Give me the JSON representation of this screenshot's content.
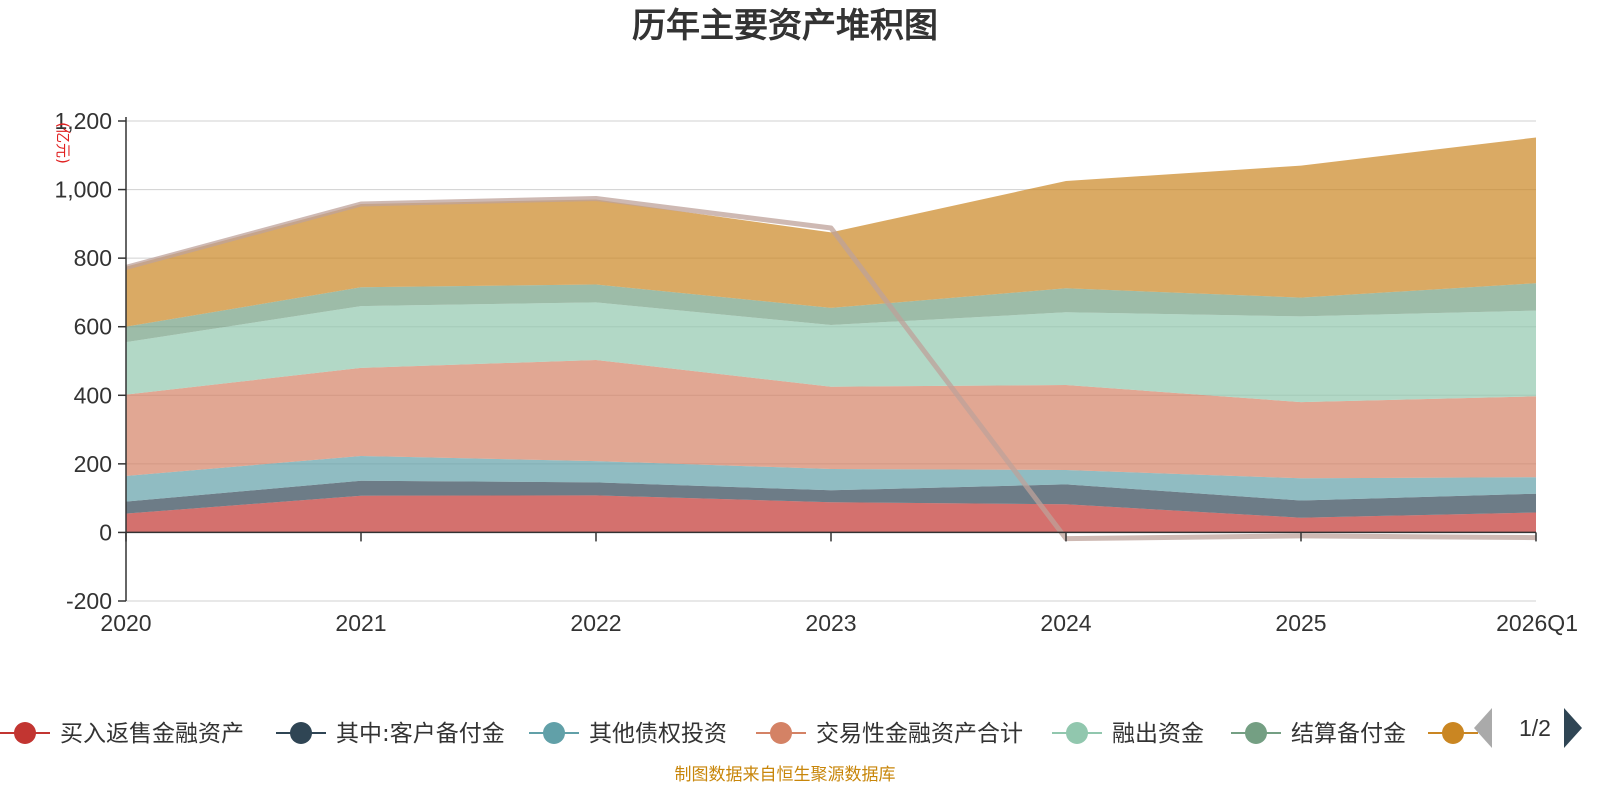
{
  "chart_data": {
    "type": "area",
    "stacked": true,
    "title": "历年主要资产堆积图",
    "unit_label": "(亿元)",
    "categories": [
      "2020",
      "2021",
      "2022",
      "2023",
      "2024",
      "2025",
      "2026Q1"
    ],
    "ylim": [
      -200,
      1200
    ],
    "yticks": [
      -200,
      0,
      200,
      400,
      600,
      800,
      1000,
      1200
    ],
    "ytick_labels": [
      "-200",
      "0",
      "200",
      "400",
      "600",
      "800",
      "1,000",
      "1,200"
    ],
    "grid": true,
    "series": [
      {
        "name": "买入返售金融资产",
        "color": "#c23531",
        "values": [
          55,
          107,
          108,
          88,
          82,
          43,
          58
        ]
      },
      {
        "name": "其中:客户备付金",
        "color": "#2f4554",
        "values": [
          35,
          44,
          38,
          35,
          58,
          50,
          55
        ]
      },
      {
        "name": "其他债权投资",
        "color": "#61a0a8",
        "values": [
          75,
          72,
          62,
          62,
          42,
          65,
          48
        ]
      },
      {
        "name": "交易性金融资产合计",
        "color": "#d48265",
        "values": [
          237,
          257,
          295,
          240,
          248,
          222,
          236
        ]
      },
      {
        "name": "融出资金",
        "color": "#91c7ae",
        "values": [
          153,
          180,
          168,
          180,
          212,
          250,
          250
        ]
      },
      {
        "name": "结算备付金",
        "color": "#749f83",
        "values": [
          45,
          55,
          52,
          50,
          70,
          55,
          80
        ]
      },
      {
        "name": "",
        "color": "#ca8622",
        "values": [
          175,
          243,
          248,
          220,
          313,
          385,
          425
        ]
      }
    ],
    "total_line": {
      "color": "#bda29a",
      "values": [
        773,
        958,
        974,
        888,
        -18,
        -10,
        -15
      ]
    },
    "legend_position": "bottom",
    "legend_page": "1/2",
    "source": "制图数据来自恒生聚源数据库"
  }
}
